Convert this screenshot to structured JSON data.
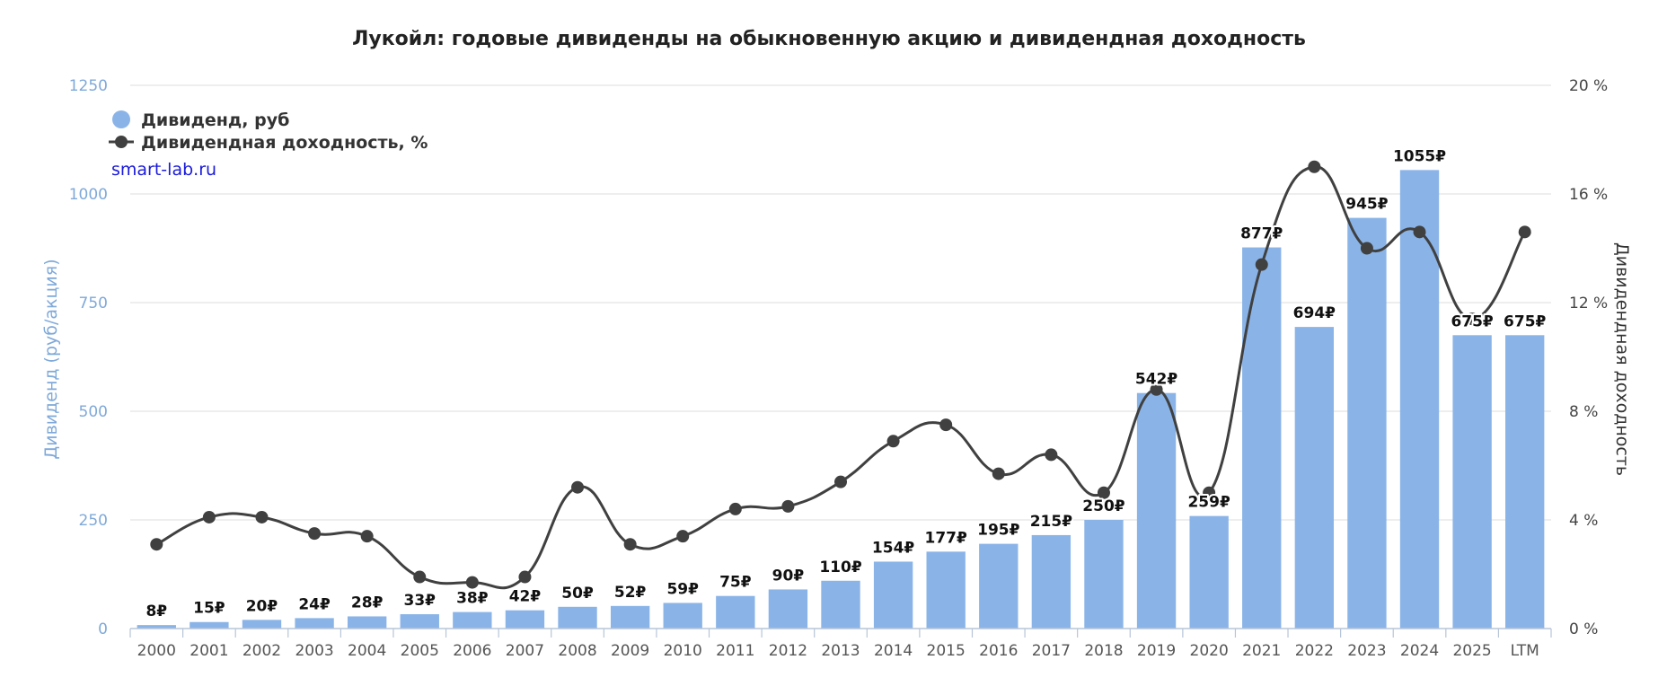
{
  "chart_data": {
    "type": "bar",
    "title": "Лукойл: годовые дивиденды на обыкновенную акцию и дивидендная доходность",
    "ylabel_left": "Дивиденд (руб/акция)",
    "ylabel_right": "Дивидендная доходность",
    "ylim_left": [
      0,
      1250
    ],
    "ylim_right": [
      0,
      20
    ],
    "yticks_left": [
      "0",
      "250",
      "500",
      "750",
      "1000",
      "1250"
    ],
    "yticks_right": [
      "0 %",
      "4 %",
      "8 %",
      "12 %",
      "16 %",
      "20 %"
    ],
    "currency_suffix": "₽",
    "grid": true,
    "legend_position": "top-left",
    "categories": [
      "2000",
      "2001",
      "2002",
      "2003",
      "2004",
      "2005",
      "2006",
      "2007",
      "2008",
      "2009",
      "2010",
      "2011",
      "2012",
      "2013",
      "2014",
      "2015",
      "2016",
      "2017",
      "2018",
      "2019",
      "2020",
      "2021",
      "2022",
      "2023",
      "2024",
      "2025",
      "LTM"
    ],
    "series": [
      {
        "name": "Дивиденд, руб",
        "type": "bar",
        "axis": "left",
        "color": "#8ab4e8",
        "values": [
          8,
          15,
          20,
          24,
          28,
          33,
          38,
          42,
          50,
          52,
          59,
          75,
          90,
          110,
          154,
          177,
          195,
          215,
          250,
          542,
          259,
          877,
          694,
          945,
          1055,
          675,
          675
        ]
      },
      {
        "name": "Дивидендная доходность, %",
        "type": "line",
        "axis": "right",
        "color": "#404040",
        "values": [
          3.1,
          4.1,
          4.1,
          3.5,
          3.4,
          1.9,
          1.7,
          1.9,
          5.2,
          3.1,
          3.4,
          4.4,
          4.5,
          5.4,
          6.9,
          7.5,
          5.7,
          6.4,
          5.0,
          8.8,
          5.0,
          13.4,
          17.0,
          14.0,
          14.6,
          11.4,
          14.6
        ]
      }
    ]
  },
  "watermark": "smart-lab.ru"
}
